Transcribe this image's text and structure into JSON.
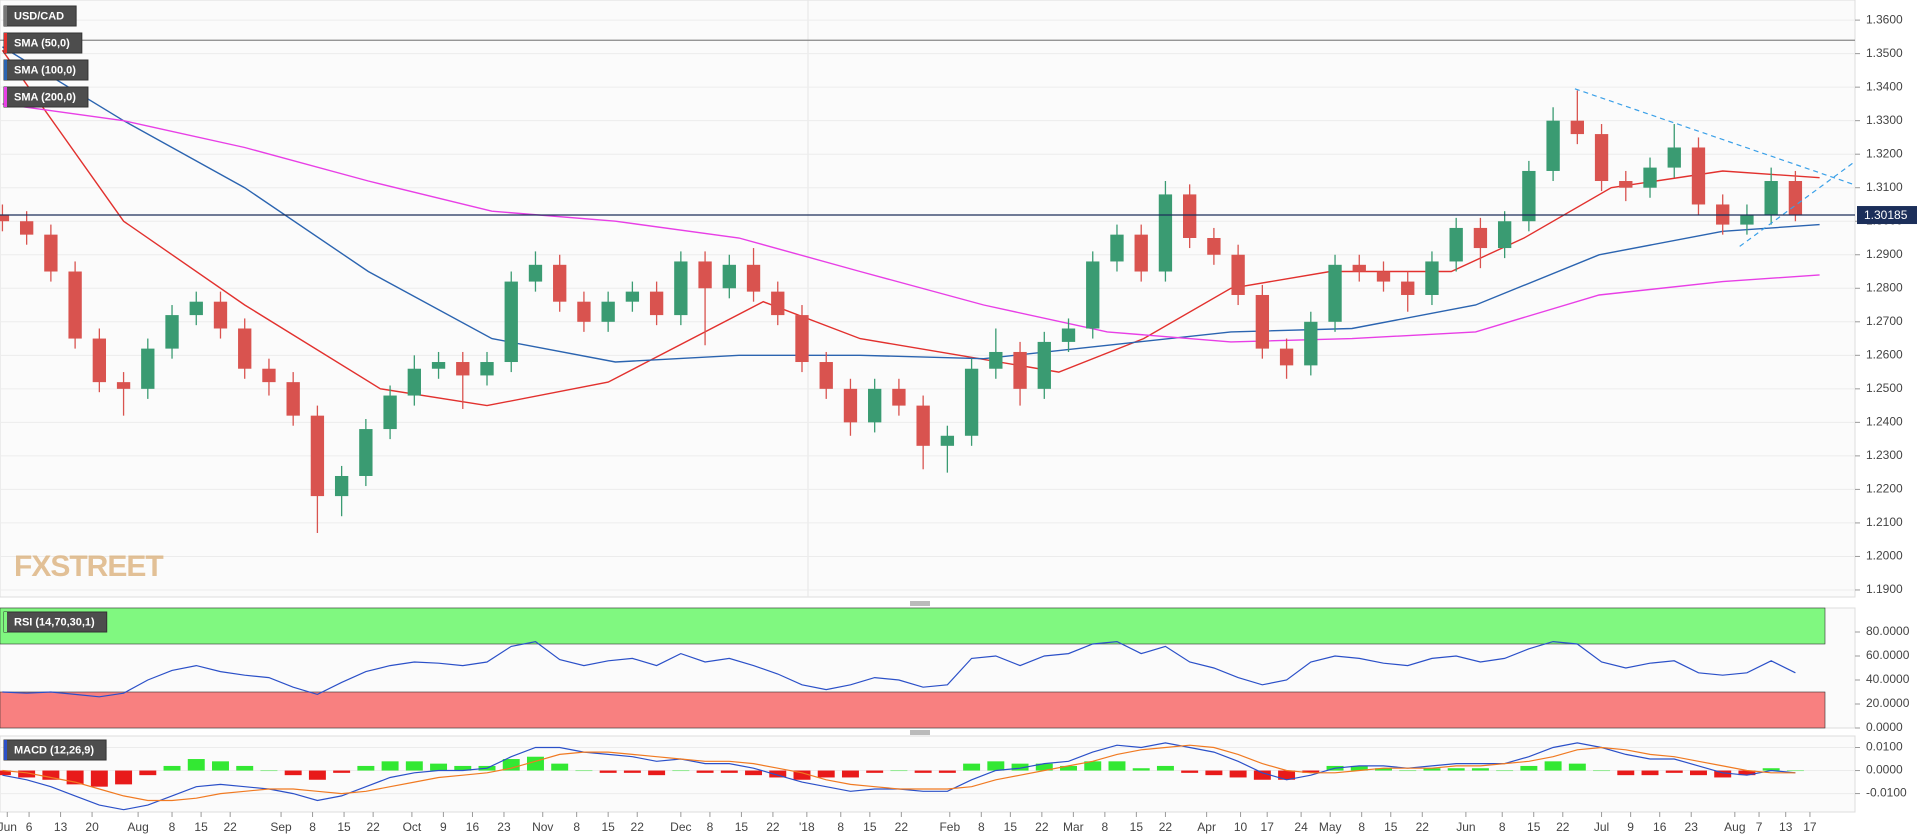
{
  "chart_data": [
    {
      "type": "candlestick",
      "title": "USD/CAD",
      "up_color": "#3a9b72",
      "down_color": "#d9534f",
      "xlim": [
        -0.1,
        76.46
      ],
      "ylim": [
        1.1879,
        1.366
      ],
      "grid": true,
      "open": [
        1.302,
        1.3,
        1.296,
        1.285,
        1.265,
        1.252,
        1.25,
        1.262,
        1.272,
        1.276,
        1.268,
        1.256,
        1.252,
        1.242,
        1.218,
        1.224,
        1.238,
        1.248,
        1.256,
        1.258,
        1.254,
        1.258,
        1.282,
        1.287,
        1.276,
        1.27,
        1.276,
        1.279,
        1.272,
        1.288,
        1.28,
        1.287,
        1.279,
        1.272,
        1.258,
        1.25,
        1.24,
        1.25,
        1.245,
        1.233,
        1.236,
        1.256,
        1.261,
        1.25,
        1.264,
        1.268,
        1.288,
        1.296,
        1.285,
        1.308,
        1.295,
        1.29,
        1.278,
        1.262,
        1.257,
        1.27,
        1.287,
        1.285,
        1.282,
        1.278,
        1.288,
        1.298,
        1.292,
        1.3,
        1.315,
        1.33,
        1.326,
        1.312,
        1.31,
        1.316,
        1.322,
        1.305,
        1.299,
        1.302,
        1.312
      ],
      "high": [
        1.305,
        1.303,
        1.299,
        1.288,
        1.268,
        1.255,
        1.265,
        1.275,
        1.279,
        1.279,
        1.271,
        1.259,
        1.255,
        1.245,
        1.227,
        1.241,
        1.251,
        1.26,
        1.261,
        1.261,
        1.261,
        1.285,
        1.291,
        1.29,
        1.279,
        1.279,
        1.282,
        1.282,
        1.291,
        1.291,
        1.29,
        1.292,
        1.282,
        1.275,
        1.261,
        1.253,
        1.253,
        1.253,
        1.248,
        1.239,
        1.259,
        1.268,
        1.264,
        1.267,
        1.271,
        1.291,
        1.299,
        1.299,
        1.312,
        1.311,
        1.298,
        1.293,
        1.281,
        1.265,
        1.273,
        1.29,
        1.29,
        1.288,
        1.285,
        1.291,
        1.301,
        1.301,
        1.303,
        1.318,
        1.334,
        1.339,
        1.329,
        1.315,
        1.319,
        1.329,
        1.325,
        1.308,
        1.305,
        1.316,
        1.315
      ],
      "low": [
        1.297,
        1.293,
        1.282,
        1.262,
        1.249,
        1.242,
        1.247,
        1.259,
        1.269,
        1.265,
        1.253,
        1.248,
        1.239,
        1.207,
        1.212,
        1.221,
        1.235,
        1.245,
        1.253,
        1.244,
        1.251,
        1.255,
        1.279,
        1.273,
        1.267,
        1.267,
        1.273,
        1.269,
        1.269,
        1.263,
        1.277,
        1.276,
        1.269,
        1.255,
        1.247,
        1.236,
        1.237,
        1.242,
        1.226,
        1.225,
        1.233,
        1.253,
        1.245,
        1.247,
        1.261,
        1.265,
        1.285,
        1.282,
        1.282,
        1.292,
        1.287,
        1.275,
        1.259,
        1.253,
        1.254,
        1.267,
        1.282,
        1.279,
        1.273,
        1.275,
        1.285,
        1.286,
        1.289,
        1.297,
        1.312,
        1.323,
        1.309,
        1.306,
        1.307,
        1.313,
        1.302,
        1.296,
        1.296,
        1.299,
        1.3
      ],
      "close": [
        1.3,
        1.296,
        1.285,
        1.265,
        1.252,
        1.25,
        1.262,
        1.272,
        1.276,
        1.268,
        1.256,
        1.252,
        1.242,
        1.218,
        1.224,
        1.238,
        1.248,
        1.256,
        1.258,
        1.254,
        1.258,
        1.282,
        1.287,
        1.276,
        1.27,
        1.276,
        1.279,
        1.272,
        1.288,
        1.28,
        1.287,
        1.279,
        1.272,
        1.258,
        1.25,
        1.24,
        1.25,
        1.245,
        1.233,
        1.236,
        1.256,
        1.261,
        1.25,
        1.264,
        1.268,
        1.288,
        1.296,
        1.285,
        1.308,
        1.295,
        1.29,
        1.278,
        1.262,
        1.257,
        1.27,
        1.287,
        1.285,
        1.282,
        1.278,
        1.288,
        1.298,
        1.292,
        1.3,
        1.315,
        1.33,
        1.326,
        1.312,
        1.31,
        1.316,
        1.322,
        1.305,
        1.299,
        1.302,
        1.312,
        1.3018
      ],
      "series": [
        {
          "name": "SMA (50,0)",
          "color": "#e2312e",
          "x": [
            0,
            5,
            10,
            15.6,
            20,
            25,
            31.4,
            35.4,
            39.5,
            43.6,
            47.1,
            50.7,
            54.8,
            59.8,
            62.8,
            66.4,
            71,
            75
          ],
          "values": [
            1.351,
            1.3,
            1.275,
            1.25,
            1.245,
            1.252,
            1.276,
            1.265,
            1.26,
            1.255,
            1.265,
            1.28,
            1.285,
            1.285,
            1.295,
            1.31,
            1.315,
            1.313
          ]
        },
        {
          "name": "SMA (100,0)",
          "color": "#2b64b0",
          "x": [
            0,
            5,
            10,
            15.1,
            20.2,
            25.3,
            30.4,
            35.4,
            40.5,
            45.6,
            50.7,
            55.7,
            60.8,
            65.9,
            71,
            75
          ],
          "values": [
            1.352,
            1.33,
            1.31,
            1.285,
            1.265,
            1.258,
            1.26,
            1.26,
            1.259,
            1.263,
            1.267,
            1.268,
            1.275,
            1.29,
            1.297,
            1.299
          ]
        },
        {
          "name": "SMA (200,0)",
          "color": "#e83fe6",
          "x": [
            0,
            5,
            10,
            15.1,
            20.2,
            25.3,
            30.4,
            35.4,
            40.5,
            45.6,
            50.7,
            55.7,
            60.8,
            65.9,
            71,
            75
          ],
          "values": [
            1.335,
            1.33,
            1.322,
            1.312,
            1.303,
            1.3,
            1.295,
            1.285,
            1.275,
            1.267,
            1.264,
            1.265,
            1.267,
            1.278,
            1.282,
            1.284
          ]
        }
      ],
      "reference_lines": [
        1.354
      ],
      "last_price": 1.30185,
      "trendlines": [
        {
          "x": [
            64.9,
            76.4
          ],
          "values": [
            1.3395,
            1.311
          ]
        },
        {
          "x": [
            71.7,
            76.4
          ],
          "values": [
            1.2925,
            1.3175
          ]
        }
      ],
      "watermark": "FXSTREET",
      "yticks": [
        {
          "value": 1.19,
          "label": "1.1900"
        },
        {
          "value": 1.2,
          "label": "1.2000"
        },
        {
          "value": 1.21,
          "label": "1.2100"
        },
        {
          "value": 1.22,
          "label": "1.2200"
        },
        {
          "value": 1.23,
          "label": "1.2300"
        },
        {
          "value": 1.24,
          "label": "1.2400"
        },
        {
          "value": 1.25,
          "label": "1.2500"
        },
        {
          "value": 1.26,
          "label": "1.2600"
        },
        {
          "value": 1.27,
          "label": "1.2700"
        },
        {
          "value": 1.28,
          "label": "1.2800"
        },
        {
          "value": 1.29,
          "label": "1.2900"
        },
        {
          "value": 1.3,
          "label": "1.3000"
        },
        {
          "value": 1.31,
          "label": "1.3100"
        },
        {
          "value": 1.32,
          "label": "1.3200"
        },
        {
          "value": 1.33,
          "label": "1.3300"
        },
        {
          "value": 1.34,
          "label": "1.3400"
        },
        {
          "value": 1.35,
          "label": "1.3500"
        },
        {
          "value": 1.36,
          "label": "1.3600"
        }
      ]
    },
    {
      "type": "line",
      "title": "RSI (14,70,30,1)",
      "color": "#2b50c8",
      "overbought": 70,
      "oversold": 30,
      "overbought_color": "#80f880",
      "oversold_color": "#f88080",
      "xlim": [
        -0.1,
        76.46
      ],
      "ylim": [
        0,
        100
      ],
      "values": [
        30,
        29,
        30,
        28,
        26,
        29,
        40,
        48,
        52,
        47,
        44,
        42,
        34,
        28,
        38,
        47,
        52,
        55,
        54,
        52,
        55,
        68,
        72,
        57,
        52,
        56,
        58,
        52,
        62,
        55,
        58,
        52,
        45,
        36,
        32,
        36,
        42,
        40,
        34,
        36,
        58,
        60,
        52,
        60,
        62,
        70,
        72,
        62,
        68,
        55,
        50,
        42,
        36,
        40,
        55,
        60,
        58,
        54,
        52,
        58,
        60,
        55,
        58,
        66,
        72,
        70,
        55,
        50,
        54,
        56,
        46,
        44,
        46,
        56,
        46
      ],
      "yticks": [
        {
          "value": 0,
          "label": "0.0000"
        },
        {
          "value": 20,
          "label": "20.0000"
        },
        {
          "value": 40,
          "label": "40.0000"
        },
        {
          "value": 60,
          "label": "60.0000"
        },
        {
          "value": 80,
          "label": "80.0000"
        }
      ]
    },
    {
      "type": "macd",
      "title": "MACD (12,26,9)",
      "xlim": [
        -0.1,
        76.46
      ],
      "ylim": [
        -0.018,
        0.015
      ],
      "series": [
        {
          "color": "#2b50c8",
          "values": [
            -0.002,
            -0.004,
            -0.007,
            -0.011,
            -0.015,
            -0.017,
            -0.015,
            -0.011,
            -0.007,
            -0.006,
            -0.007,
            -0.008,
            -0.01,
            -0.013,
            -0.011,
            -0.007,
            -0.003,
            -0.001,
            0.0,
            0.0,
            0.001,
            0.006,
            0.01,
            0.01,
            0.008,
            0.007,
            0.006,
            0.004,
            0.005,
            0.003,
            0.003,
            0.001,
            -0.002,
            -0.005,
            -0.007,
            -0.009,
            -0.008,
            -0.008,
            -0.009,
            -0.009,
            -0.004,
            0.0,
            0.001,
            0.003,
            0.004,
            0.008,
            0.011,
            0.01,
            0.012,
            0.01,
            0.008,
            0.004,
            -0.001,
            -0.004,
            -0.002,
            0.001,
            0.002,
            0.002,
            0.001,
            0.002,
            0.003,
            0.003,
            0.003,
            0.006,
            0.01,
            0.012,
            0.01,
            0.007,
            0.005,
            0.005,
            0.002,
            -0.001,
            -0.002,
            0.0,
            -0.001
          ]
        },
        {
          "color": "#f07a22",
          "values": [
            0.0,
            -0.001,
            -0.003,
            -0.005,
            -0.008,
            -0.011,
            -0.013,
            -0.013,
            -0.012,
            -0.01,
            -0.009,
            -0.008,
            -0.008,
            -0.009,
            -0.01,
            -0.009,
            -0.007,
            -0.005,
            -0.003,
            -0.002,
            -0.001,
            0.001,
            0.004,
            0.007,
            0.008,
            0.008,
            0.007,
            0.006,
            0.005,
            0.004,
            0.004,
            0.003,
            0.001,
            -0.001,
            -0.004,
            -0.006,
            -0.007,
            -0.008,
            -0.008,
            -0.008,
            -0.007,
            -0.004,
            -0.002,
            0.0,
            0.002,
            0.004,
            0.007,
            0.009,
            0.01,
            0.011,
            0.01,
            0.007,
            0.003,
            0.0,
            -0.001,
            -0.001,
            0.0,
            0.001,
            0.001,
            0.001,
            0.002,
            0.002,
            0.003,
            0.004,
            0.006,
            0.009,
            0.01,
            0.009,
            0.007,
            0.006,
            0.004,
            0.002,
            0.0,
            -0.001,
            -0.001
          ]
        }
      ],
      "histogram": [
        -0.002,
        -0.003,
        -0.004,
        -0.006,
        -0.007,
        -0.006,
        -0.002,
        0.002,
        0.005,
        0.004,
        0.002,
        0.0,
        -0.002,
        -0.004,
        -0.001,
        0.002,
        0.004,
        0.004,
        0.003,
        0.002,
        0.002,
        0.005,
        0.006,
        0.003,
        0.0,
        -0.001,
        -0.001,
        -0.002,
        0.0,
        -0.001,
        -0.001,
        -0.002,
        -0.003,
        -0.004,
        -0.003,
        -0.003,
        -0.001,
        0.0,
        -0.001,
        -0.001,
        0.003,
        0.004,
        0.003,
        0.003,
        0.002,
        0.004,
        0.004,
        0.001,
        0.002,
        -0.001,
        -0.002,
        -0.003,
        -0.004,
        -0.004,
        -0.001,
        0.002,
        0.002,
        0.001,
        0.0,
        0.001,
        0.001,
        0.001,
        0.0,
        0.002,
        0.004,
        0.003,
        0.0,
        -0.002,
        -0.002,
        -0.001,
        -0.002,
        -0.003,
        -0.002,
        0.001,
        0.0
      ],
      "up_color": "#33e833",
      "down_color": "#e81a1a",
      "yticks": [
        {
          "value": -0.01,
          "label": "-0.0100"
        },
        {
          "value": 0,
          "label": "0.0000"
        },
        {
          "value": 0.01,
          "label": "0.0100"
        }
      ],
      "xticks": [
        {
          "value": 0.2,
          "label": "Jun"
        },
        {
          "value": 1.1,
          "label": "6"
        },
        {
          "value": 2.4,
          "label": "13"
        },
        {
          "value": 3.7,
          "label": "20"
        },
        {
          "value": 5.6,
          "label": "Aug"
        },
        {
          "value": 7.0,
          "label": "8"
        },
        {
          "value": 8.2,
          "label": "15"
        },
        {
          "value": 9.4,
          "label": "22"
        },
        {
          "value": 11.5,
          "label": "Sep"
        },
        {
          "value": 12.8,
          "label": "8"
        },
        {
          "value": 14.1,
          "label": "15"
        },
        {
          "value": 15.3,
          "label": "22"
        },
        {
          "value": 16.9,
          "label": "Oct"
        },
        {
          "value": 18.2,
          "label": "9"
        },
        {
          "value": 19.4,
          "label": "16"
        },
        {
          "value": 20.7,
          "label": "23"
        },
        {
          "value": 22.3,
          "label": "Nov"
        },
        {
          "value": 23.7,
          "label": "8"
        },
        {
          "value": 25.0,
          "label": "15"
        },
        {
          "value": 26.2,
          "label": "22"
        },
        {
          "value": 28.0,
          "label": "Dec"
        },
        {
          "value": 29.2,
          "label": "8"
        },
        {
          "value": 30.5,
          "label": "15"
        },
        {
          "value": 31.8,
          "label": "22"
        },
        {
          "value": 33.2,
          "label": "'18"
        },
        {
          "value": 34.6,
          "label": "8"
        },
        {
          "value": 35.8,
          "label": "15"
        },
        {
          "value": 37.1,
          "label": "22"
        },
        {
          "value": 39.1,
          "label": "Feb"
        },
        {
          "value": 40.4,
          "label": "8"
        },
        {
          "value": 41.6,
          "label": "15"
        },
        {
          "value": 42.9,
          "label": "22"
        },
        {
          "value": 44.2,
          "label": "Mar"
        },
        {
          "value": 45.5,
          "label": "8"
        },
        {
          "value": 46.8,
          "label": "15"
        },
        {
          "value": 48.0,
          "label": "22"
        },
        {
          "value": 49.7,
          "label": "Apr"
        },
        {
          "value": 51.1,
          "label": "10"
        },
        {
          "value": 52.2,
          "label": "17"
        },
        {
          "value": 53.6,
          "label": "24"
        },
        {
          "value": 54.8,
          "label": "May"
        },
        {
          "value": 56.1,
          "label": "8"
        },
        {
          "value": 57.3,
          "label": "15"
        },
        {
          "value": 58.6,
          "label": "22"
        },
        {
          "value": 60.4,
          "label": "Jun"
        },
        {
          "value": 61.9,
          "label": "8"
        },
        {
          "value": 63.2,
          "label": "15"
        },
        {
          "value": 64.4,
          "label": "22"
        },
        {
          "value": 66.0,
          "label": "Jul"
        },
        {
          "value": 67.2,
          "label": "9"
        },
        {
          "value": 68.4,
          "label": "16"
        },
        {
          "value": 69.7,
          "label": "23"
        },
        {
          "value": 71.5,
          "label": "Aug"
        },
        {
          "value": 72.5,
          "label": "7"
        },
        {
          "value": 73.6,
          "label": "13"
        },
        {
          "value": 74.6,
          "label": "17"
        }
      ]
    }
  ]
}
